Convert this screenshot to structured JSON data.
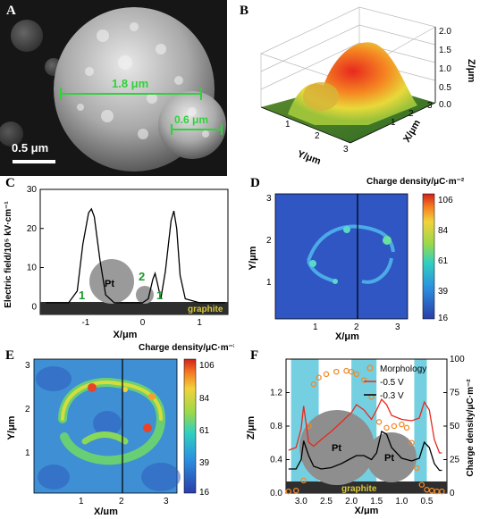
{
  "figure": {
    "panels": {
      "A": {
        "label": "A",
        "measure_1": "1.8 μm",
        "measure_2": "0.6 μm",
        "scale_bar": "0.5 μm"
      },
      "B": {
        "label": "B",
        "zlabel": "Z/μm",
        "ylabel": "Y/μm",
        "xlabel": "X/μm",
        "z_ticks": [
          "2.0",
          "1.5",
          "1.0",
          "0.5",
          "0.0"
        ],
        "y_ticks": [
          "1",
          "2",
          "3"
        ],
        "x_ticks": [
          "1",
          "2",
          "3"
        ]
      },
      "C": {
        "label": "C",
        "ylabel": "Electric field/10⁵ kV·cm⁻¹",
        "xlabel": "X/μm",
        "particle_label": "Pt",
        "regions": [
          "1",
          "2",
          "1"
        ],
        "substrate": "graphite"
      },
      "D": {
        "label": "D",
        "colorbar_title": "Charge density/μC·m⁻²",
        "colorbar_ticks": [
          "106",
          "84",
          "61",
          "39",
          "16"
        ],
        "ylabel": "Y/μm",
        "xlabel": "X/μm"
      },
      "E": {
        "label": "E",
        "colorbar_title": "Charge density/μC·m⁻²",
        "colorbar_ticks": [
          "106",
          "84",
          "61",
          "39",
          "16"
        ],
        "ylabel": "Y/μm",
        "xlabel": "X/μm"
      },
      "F": {
        "label": "F",
        "ylabel_left": "Z/μm",
        "ylabel_right": "Charge density/μC·m⁻²",
        "xlabel": "X/μm",
        "legend": [
          "Morphology",
          "-0.5 V",
          "-0.3 V"
        ],
        "particle_labels": [
          "Pt",
          "Pt"
        ],
        "substrate": "graphite"
      }
    }
  },
  "chart_data": [
    {
      "type": "line",
      "panel": "C",
      "xlabel": "X/μm",
      "ylabel": "Electric field/10⁵ kV·cm⁻¹",
      "xlim": [
        -1.8,
        1.5
      ],
      "ylim": [
        -2,
        30
      ],
      "x_ticks": [
        -1,
        0,
        1
      ],
      "y_ticks": [
        0,
        10,
        20,
        30
      ],
      "series": [
        {
          "x": [
            -1.7,
            -1.3,
            -1.15,
            -1.05,
            -0.95,
            -0.9,
            -0.85,
            -0.75,
            -0.65,
            -0.5,
            -0.3,
            0,
            0.1,
            0.18,
            0.22,
            0.26,
            0.32,
            0.4,
            0.5,
            0.55,
            0.6,
            0.66,
            0.75,
            1.0,
            1.45
          ],
          "y": [
            1,
            1,
            4,
            16,
            24,
            25,
            23,
            12,
            3,
            1,
            1,
            1,
            2,
            7,
            8.5,
            6,
            2,
            9,
            22,
            24.5,
            20,
            8,
            2,
            1,
            1
          ]
        }
      ]
    },
    {
      "type": "line",
      "panel": "F",
      "xlabel": "X/μm",
      "ylabel": "Z/μm",
      "xlim": [
        3.3,
        0.1
      ],
      "ylim": [
        0,
        1.6
      ],
      "x_ticks": [
        3.0,
        2.5,
        2.0,
        1.5,
        1.0,
        0.5
      ],
      "y_ticks": [
        0.0,
        0.4,
        0.8,
        1.2
      ],
      "y2lim": [
        0,
        100
      ],
      "y2_ticks": [
        0,
        25,
        50,
        75,
        100
      ],
      "series": [
        {
          "name": "Morphology",
          "x": [
            3.25,
            3.1,
            2.95,
            2.85,
            2.75,
            2.65,
            2.5,
            2.3,
            2.1,
            2.0,
            1.9,
            1.75,
            1.6,
            1.45,
            1.3,
            1.15,
            1.0,
            0.9,
            0.8,
            0.7,
            0.6,
            0.5,
            0.4,
            0.3,
            0.2
          ],
          "y": [
            0.02,
            0.03,
            0.15,
            0.8,
            1.3,
            1.38,
            1.42,
            1.45,
            1.46,
            1.45,
            1.42,
            1.35,
            1.15,
            0.85,
            0.78,
            0.8,
            0.82,
            0.78,
            0.6,
            0.3,
            0.1,
            0.04,
            0.03,
            0.02,
            0.02
          ]
        },
        {
          "name": "-0.5 V",
          "x": [
            3.25,
            3.1,
            3.0,
            2.95,
            2.85,
            2.75,
            2.6,
            2.4,
            2.2,
            2.0,
            1.9,
            1.75,
            1.6,
            1.5,
            1.4,
            1.3,
            1.2,
            1.0,
            0.8,
            0.65,
            0.55,
            0.45,
            0.35,
            0.25,
            0.2
          ],
          "y": [
            32,
            34,
            48,
            65,
            38,
            35,
            40,
            46,
            53,
            60,
            66,
            62,
            55,
            62,
            70,
            66,
            58,
            55,
            54,
            56,
            68,
            62,
            40,
            30,
            30
          ]
        },
        {
          "name": "-0.3 V",
          "x": [
            3.25,
            3.1,
            3.0,
            2.95,
            2.85,
            2.75,
            2.6,
            2.4,
            2.2,
            2.0,
            1.9,
            1.75,
            1.6,
            1.5,
            1.4,
            1.3,
            1.2,
            1.0,
            0.8,
            0.65,
            0.55,
            0.45,
            0.35,
            0.25,
            0.2
          ],
          "y": [
            18,
            18,
            25,
            39,
            28,
            20,
            18,
            19,
            22,
            26,
            28,
            28,
            25,
            30,
            46,
            44,
            34,
            26,
            24,
            26,
            38,
            34,
            22,
            17,
            17
          ]
        }
      ]
    }
  ]
}
